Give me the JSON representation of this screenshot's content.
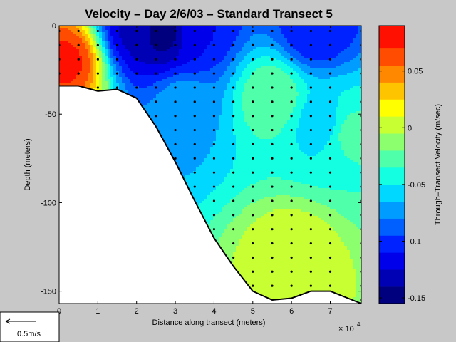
{
  "chart_data": {
    "type": "heatmap",
    "title": "Velocity – Day 2/6/03 – Standard Transect 5",
    "xlabel": "Distance along transect (meters)",
    "ylabel": "Depth (meters)",
    "x_exponent_label": "× 10",
    "x_exponent_power": "4",
    "xlim": [
      0,
      78000
    ],
    "ylim": [
      -157,
      0
    ],
    "xticks": [
      0,
      10000,
      20000,
      30000,
      40000,
      50000,
      60000,
      70000
    ],
    "xtick_labels": [
      "0",
      "1",
      "2",
      "3",
      "4",
      "5",
      "6",
      "7"
    ],
    "yticks": [
      0,
      -50,
      -100,
      -150
    ],
    "ytick_labels": [
      "0",
      "-50",
      "-100",
      "-150"
    ],
    "colorbar": {
      "label": "Through–Transect Velocity (m/sec)",
      "range": [
        -0.155,
        0.09
      ],
      "ticks": [
        0.05,
        0,
        -0.05,
        -0.1,
        -0.15
      ],
      "tick_labels": [
        "0.05",
        "0",
        "-0.05",
        "-0.1",
        "-0.15"
      ],
      "levels": [
        -0.155,
        -0.14,
        -0.125,
        -0.11,
        -0.095,
        -0.08,
        -0.065,
        -0.05,
        -0.035,
        -0.02,
        -0.005,
        0.01,
        0.025,
        0.04,
        0.055,
        0.07,
        0.09
      ],
      "colors": [
        "#00007f",
        "#0000b4",
        "#0000ea",
        "#0022ff",
        "#0060ff",
        "#009cff",
        "#00d8ff",
        "#14ffe2",
        "#50ffaa",
        "#8cff6e",
        "#c8ff32",
        "#ffff00",
        "#ffc400",
        "#ff8800",
        "#ff4c00",
        "#ff1000",
        "#b20000"
      ]
    },
    "bottom_profile": [
      [
        0,
        -34
      ],
      [
        5000,
        -34
      ],
      [
        10000,
        -37
      ],
      [
        15000,
        -36
      ],
      [
        20000,
        -41
      ],
      [
        25000,
        -57
      ],
      [
        30000,
        -77
      ],
      [
        35000,
        -99
      ],
      [
        40000,
        -120
      ],
      [
        45000,
        -136
      ],
      [
        50000,
        -150
      ],
      [
        55000,
        -155
      ],
      [
        60000,
        -154
      ],
      [
        65000,
        -150
      ],
      [
        70000,
        -150
      ],
      [
        78000,
        -157
      ]
    ],
    "measurement_stations": [
      0,
      5000,
      10000,
      15000,
      20000,
      25000,
      30000,
      35000,
      40000,
      45000,
      50000,
      55000,
      60000,
      65000,
      70000,
      78000
    ],
    "measurement_depth_interval": 8,
    "velocity_features": [
      {
        "x": 2000,
        "depth": -20,
        "value": 0.075
      },
      {
        "x": 20000,
        "depth": -3,
        "value": -0.13
      },
      {
        "x": 27000,
        "depth": -4,
        "value": -0.15
      },
      {
        "x": 35000,
        "depth": -4,
        "value": -0.11
      },
      {
        "x": 66000,
        "depth": -3,
        "value": -0.11
      },
      {
        "x": 32000,
        "depth": -45,
        "value": -0.07
      },
      {
        "x": 68000,
        "depth": -55,
        "value": -0.06
      },
      {
        "x": 60000,
        "depth": -130,
        "value": 0.01
      },
      {
        "x": 75000,
        "depth": -60,
        "value": -0.03
      },
      {
        "x": 55000,
        "depth": -40,
        "value": -0.02
      }
    ]
  },
  "scale_arrow": {
    "label": "0.5m/s",
    "speed": 0.5,
    "unit": "m/s"
  }
}
